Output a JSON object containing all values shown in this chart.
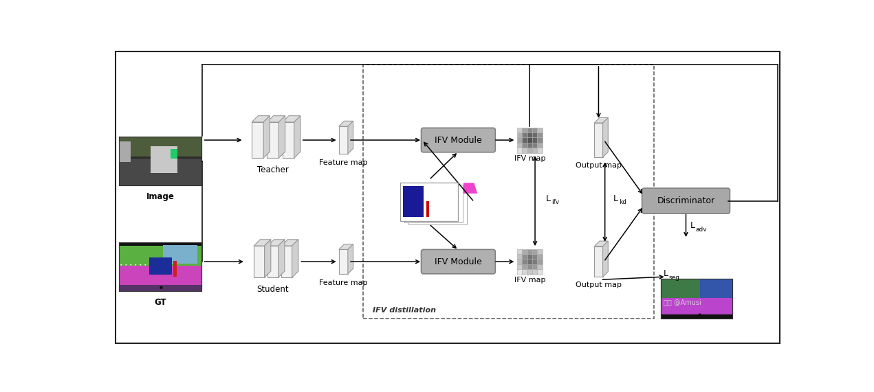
{
  "bg_color": "#ffffff",
  "figure_size": [
    12.71,
    5.71
  ],
  "dpi": 100,
  "teacher_label": "Teacher",
  "student_label": "Student",
  "feature_map_label_t": "Feature map",
  "feature_map_label_s": "Feature map",
  "ifv_module_label_t": "IFV Module",
  "ifv_module_label_s": "IFV Module",
  "ifv_map_label_t": "IFV map",
  "ifv_map_label_s": "IFV map",
  "output_map_label_t": "Output map",
  "output_map_label_s": "Output map",
  "discriminator_label": "Discriminator",
  "ifv_distillation_label": "IFV distillation",
  "image_label": "Image",
  "gt_label": "GT",
  "l_ifv_main": "L",
  "l_ifv_sub": "ifv",
  "l_kd_main": "L",
  "l_kd_sub": "kd",
  "l_adv_main": "L",
  "l_adv_sub": "adv",
  "l_seg_main": "L",
  "l_seg_sub": "seg",
  "watermark": "知乎 @Amusi"
}
